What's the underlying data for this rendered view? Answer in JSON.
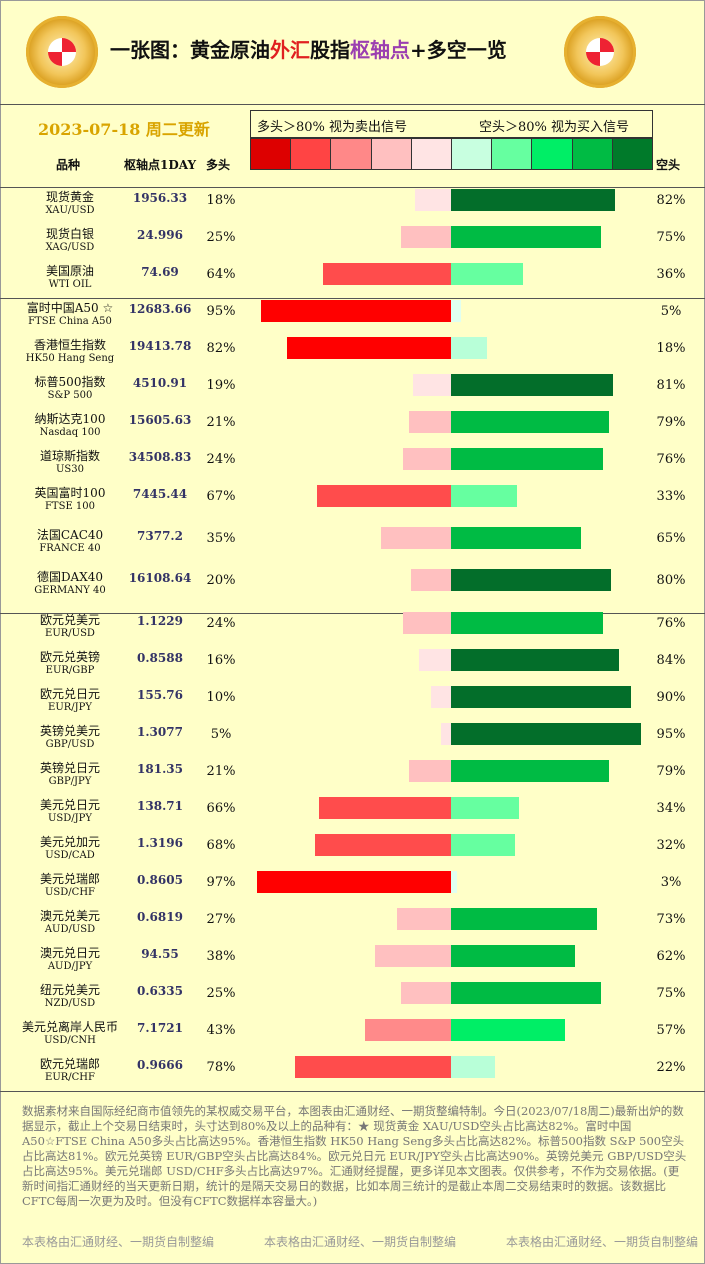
{
  "title": {
    "p1": "一张图：黄金原油",
    "p2": "外汇",
    "p3": "股指",
    "p4": "枢轴点",
    "p5": "+多空一览"
  },
  "date": "2023-07-18 周二更新",
  "legend": {
    "left": "多头＞80% 视为卖出信号",
    "right": "空头＞80% 视为买入信号"
  },
  "scale_colors": [
    "#dd0000",
    "#ff4444",
    "#ff8888",
    "#ffc0c0",
    "#ffe4e4",
    "#c8ffe0",
    "#66ffa0",
    "#00ee66",
    "#00bb44",
    "#007a2a"
  ],
  "headers": {
    "name": "品种",
    "pivot": "枢轴点1DAY",
    "long": "多头",
    "short": "空头"
  },
  "chart_data": {
    "type": "bar",
    "rows": [
      {
        "cn": "现货黄金",
        "en": "XAU/USD",
        "pivot": "1956.33",
        "long": 18,
        "short": 82,
        "long_lbl": "18%",
        "short_lbl": "82%"
      },
      {
        "cn": "现货白银",
        "en": "XAG/USD",
        "pivot": "24.996",
        "long": 25,
        "short": 75,
        "long_lbl": "25%",
        "short_lbl": "75%"
      },
      {
        "cn": "美国原油",
        "en": "WTI OIL",
        "pivot": "74.69",
        "long": 64,
        "short": 36,
        "long_lbl": "64%",
        "short_lbl": "36%"
      },
      {
        "cn": "富时中国A50 ☆",
        "en": "FTSE China A50",
        "pivot": "12683.66",
        "long": 95,
        "short": 5,
        "long_lbl": "95%",
        "short_lbl": "5%"
      },
      {
        "cn": "香港恒生指数",
        "en": "HK50 Hang Seng",
        "pivot": "19413.78",
        "long": 82,
        "short": 18,
        "long_lbl": "82%",
        "short_lbl": "18%"
      },
      {
        "cn": "标普500指数",
        "en": "S&P 500",
        "pivot": "4510.91",
        "long": 19,
        "short": 81,
        "long_lbl": "19%",
        "short_lbl": "81%"
      },
      {
        "cn": "纳斯达克100",
        "en": "Nasdaq 100",
        "pivot": "15605.63",
        "long": 21,
        "short": 79,
        "long_lbl": "21%",
        "short_lbl": "79%"
      },
      {
        "cn": "道琼斯指数",
        "en": "US30",
        "pivot": "34508.83",
        "long": 24,
        "short": 76,
        "long_lbl": "24%",
        "short_lbl": "76%"
      },
      {
        "cn": "英国富时100",
        "en": "FTSE 100",
        "pivot": "7445.44",
        "long": 67,
        "short": 33,
        "long_lbl": "67%",
        "short_lbl": "33%"
      },
      {
        "cn": "法国CAC40",
        "en": "FRANCE 40",
        "pivot": "7377.2",
        "long": 35,
        "short": 65,
        "long_lbl": "35%",
        "short_lbl": "65%"
      },
      {
        "cn": "德国DAX40",
        "en": "GERMANY 40",
        "pivot": "16108.64",
        "long": 20,
        "short": 80,
        "long_lbl": "20%",
        "short_lbl": "80%"
      },
      {
        "cn": "欧元兑美元",
        "en": "EUR/USD",
        "pivot": "1.1229",
        "long": 24,
        "short": 76,
        "long_lbl": "24%",
        "short_lbl": "76%"
      },
      {
        "cn": "欧元兑英镑",
        "en": "EUR/GBP",
        "pivot": "0.8588",
        "long": 16,
        "short": 84,
        "long_lbl": "16%",
        "short_lbl": "84%"
      },
      {
        "cn": "欧元兑日元",
        "en": "EUR/JPY",
        "pivot": "155.76",
        "long": 10,
        "short": 90,
        "long_lbl": "10%",
        "short_lbl": "90%"
      },
      {
        "cn": "英镑兑美元",
        "en": "GBP/USD",
        "pivot": "1.3077",
        "long": 5,
        "short": 95,
        "long_lbl": "5%",
        "short_lbl": "95%"
      },
      {
        "cn": "英镑兑日元",
        "en": "GBP/JPY",
        "pivot": "181.35",
        "long": 21,
        "short": 79,
        "long_lbl": "21%",
        "short_lbl": "79%"
      },
      {
        "cn": "美元兑日元",
        "en": "USD/JPY",
        "pivot": "138.71",
        "long": 66,
        "short": 34,
        "long_lbl": "66%",
        "short_lbl": "34%"
      },
      {
        "cn": "美元兑加元",
        "en": "USD/CAD",
        "pivot": "1.3196",
        "long": 68,
        "short": 32,
        "long_lbl": "68%",
        "short_lbl": "32%"
      },
      {
        "cn": "美元兑瑞郎",
        "en": "USD/CHF",
        "pivot": "0.8605",
        "long": 97,
        "short": 3,
        "long_lbl": "97%",
        "short_lbl": "3%"
      },
      {
        "cn": "澳元兑美元",
        "en": "AUD/USD",
        "pivot": "0.6819",
        "long": 27,
        "short": 73,
        "long_lbl": "27%",
        "short_lbl": "73%"
      },
      {
        "cn": "澳元兑日元",
        "en": "AUD/JPY",
        "pivot": "94.55",
        "long": 38,
        "short": 62,
        "long_lbl": "38%",
        "short_lbl": "62%"
      },
      {
        "cn": "纽元兑美元",
        "en": "NZD/USD",
        "pivot": "0.6335",
        "long": 25,
        "short": 75,
        "long_lbl": "25%",
        "short_lbl": "75%"
      },
      {
        "cn": "美元兑离岸人民币",
        "en": "USD/CNH",
        "pivot": "7.1721",
        "long": 43,
        "short": 57,
        "long_lbl": "43%",
        "short_lbl": "57%"
      },
      {
        "cn": "欧元兑瑞郎",
        "en": "EUR/CHF",
        "pivot": "0.9666",
        "long": 78,
        "short": 22,
        "long_lbl": "78%",
        "short_lbl": "22%"
      }
    ]
  },
  "note": "数据素材来自国际经纪商市值领先的某权威交易平台，本图表由汇通财经、一期货整编特制。今日(2023/07/18周二)最新出炉的数据显示，截止上个交易日结束时，头寸达到80%及以上的品种有：★ 现货黄金 XAU/USD空头占比高达82%。富时中国A50☆FTSE China A50多头占比高达95%。香港恒生指数 HK50 Hang Seng多头占比高达82%。标普500指数 S&P 500空头占比高达81%。欧元兑英镑 EUR/GBP空头占比高达84%。欧元兑日元 EUR/JPY空头占比高达90%。英镑兑美元 GBP/USD空头占比高达95%。美元兑瑞郎 USD/CHF多头占比高达97%。汇通财经提醒，更多详见本文图表。仅供参考，不作为交易依据。(更新时间指汇通财经的当天更新日期，统计的是隔天交易日的数据，比如本周三统计的是截止本周二交易结束时的数据。该数据比CFTC每周一次更为及时。但没有CFTC数据样本容量大。)",
  "footer": [
    "本表格由汇通财经、一期货自制整编",
    "本表格由汇通财经、一期货自制整编",
    "本表格由汇通财经、一期货自制整编"
  ]
}
